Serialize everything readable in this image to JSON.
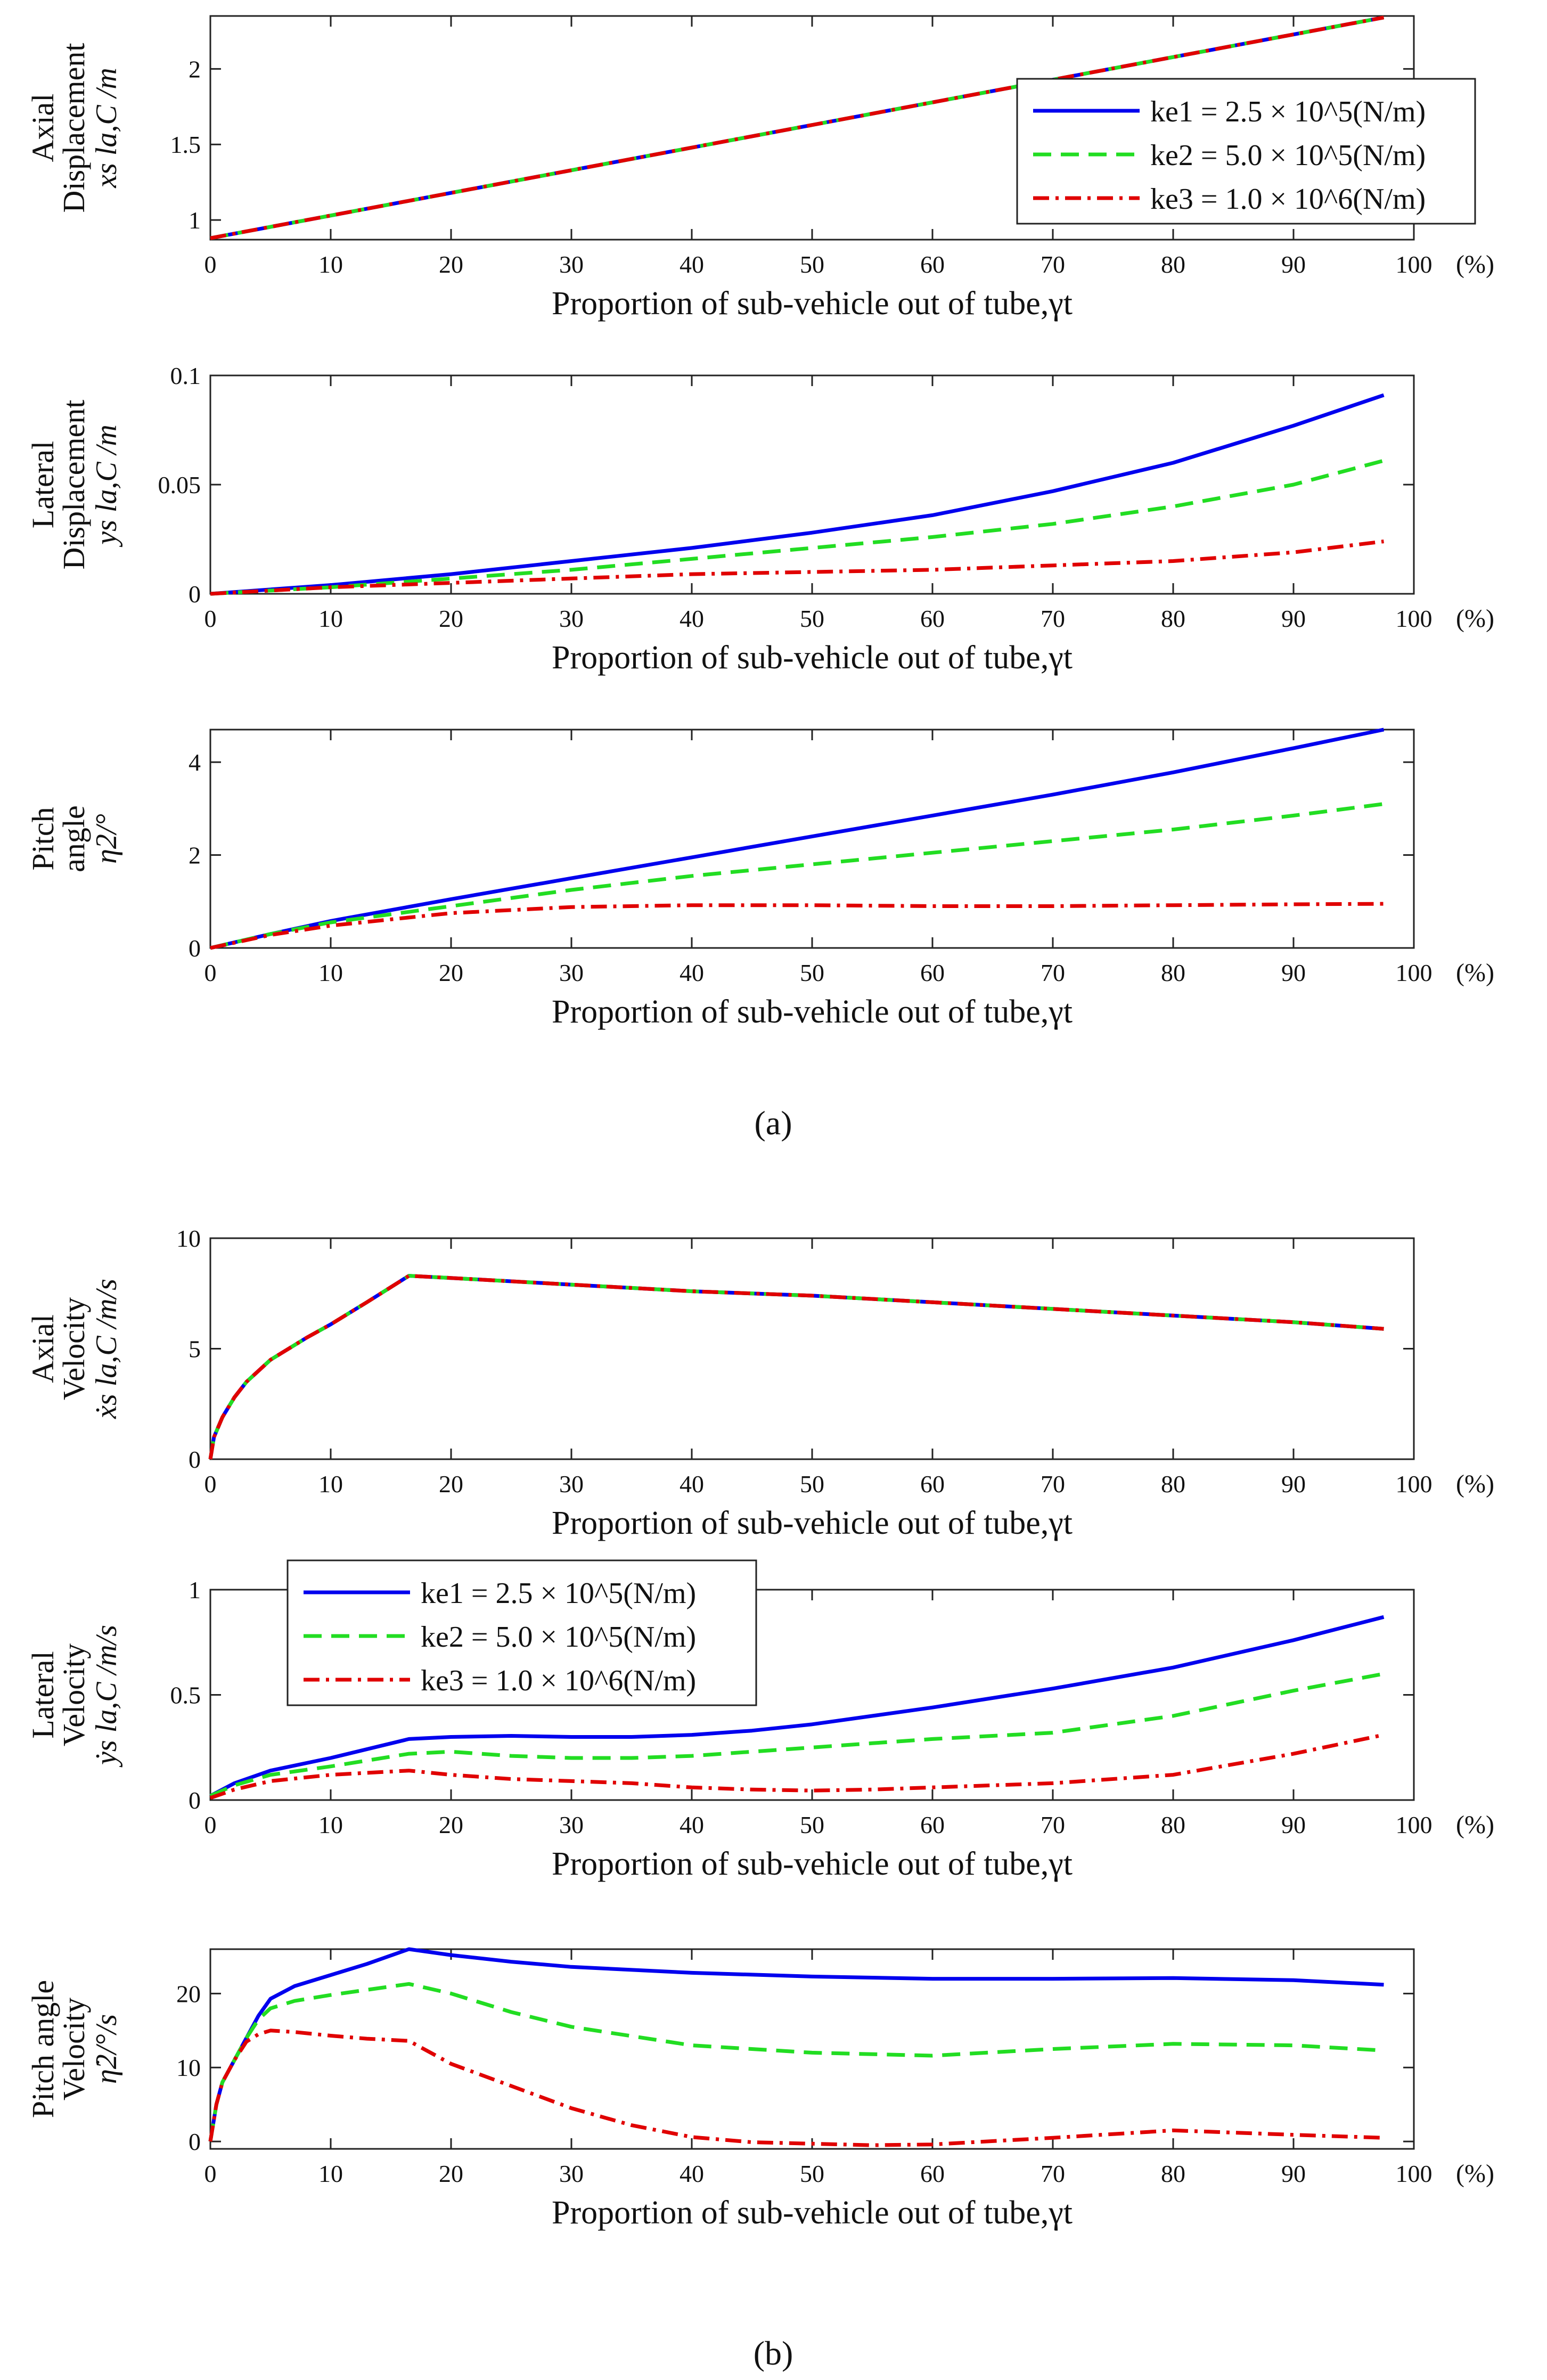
{
  "figure": {
    "label_a": "(a)",
    "label_b": "(b)",
    "colors": {
      "s1": "#0000ee",
      "s2": "#22dd22",
      "s3": "#e00000"
    }
  },
  "chart_data": [
    {
      "id": "axial-displacement",
      "type": "line",
      "title": "",
      "xlabel": "Proportion of sub-vehicle out of tube,γt",
      "x_unit": "(%)",
      "ylabel_lines": [
        "Axial",
        "Displacement",
        "xs la,C /m"
      ],
      "xlim": [
        0,
        100
      ],
      "ylim": [
        0.87,
        2.35
      ],
      "xticks": [
        "0",
        "10",
        "20",
        "30",
        "40",
        "50",
        "60",
        "70",
        "80",
        "90",
        "100"
      ],
      "yticks": [
        {
          "v": 1,
          "t": "1"
        },
        {
          "v": 1.5,
          "t": "1.5"
        },
        {
          "v": 2,
          "t": "2"
        }
      ],
      "legend": {
        "position": "upper-right",
        "entries": [
          "ke1 = 2.5 × 10^5(N/m)",
          "ke2 = 5.0 × 10^5(N/m)",
          "ke3 = 1.0 × 10^6(N/m)"
        ]
      },
      "series": [
        {
          "name": "ke1 = 2.5 × 10^5(N/m)",
          "x": [
            0,
            97.5
          ],
          "y": [
            0.88,
            2.34
          ]
        },
        {
          "name": "ke2 = 5.0 × 10^5(N/m)",
          "x": [
            0,
            97.5
          ],
          "y": [
            0.88,
            2.34
          ]
        },
        {
          "name": "ke3 = 1.0 × 10^6(N/m)",
          "x": [
            0,
            97.5
          ],
          "y": [
            0.88,
            2.34
          ]
        }
      ]
    },
    {
      "id": "lateral-displacement",
      "type": "line",
      "xlabel": "Proportion of sub-vehicle out of tube,γt",
      "x_unit": "(%)",
      "ylabel_lines": [
        "Lateral",
        "Displacement",
        "ys la,C /m"
      ],
      "xlim": [
        0,
        100
      ],
      "ylim": [
        0,
        0.1
      ],
      "xticks": [
        "0",
        "10",
        "20",
        "30",
        "40",
        "50",
        "60",
        "70",
        "80",
        "90",
        "100"
      ],
      "yticks": [
        {
          "v": 0,
          "t": "0"
        },
        {
          "v": 0.05,
          "t": "0.05"
        },
        {
          "v": 0.1,
          "t": "0.1"
        }
      ],
      "series": [
        {
          "name": "ke1 = 2.5 × 10^5(N/m)",
          "x": [
            0,
            10,
            20,
            30,
            40,
            50,
            60,
            70,
            80,
            90,
            97.5
          ],
          "y": [
            0,
            0.004,
            0.009,
            0.015,
            0.021,
            0.028,
            0.036,
            0.047,
            0.06,
            0.077,
            0.091
          ]
        },
        {
          "name": "ke2 = 5.0 × 10^5(N/m)",
          "x": [
            0,
            10,
            20,
            30,
            40,
            50,
            60,
            70,
            80,
            90,
            97.5
          ],
          "y": [
            0,
            0.003,
            0.007,
            0.011,
            0.016,
            0.021,
            0.026,
            0.032,
            0.04,
            0.05,
            0.061
          ]
        },
        {
          "name": "ke3 = 1.0 × 10^6(N/m)",
          "x": [
            0,
            10,
            20,
            30,
            40,
            50,
            60,
            70,
            80,
            90,
            97.5
          ],
          "y": [
            0,
            0.003,
            0.005,
            0.007,
            0.009,
            0.01,
            0.011,
            0.013,
            0.015,
            0.019,
            0.024
          ]
        }
      ]
    },
    {
      "id": "pitch-angle",
      "type": "line",
      "xlabel": "Proportion of sub-vehicle out of tube,γt",
      "x_unit": "(%)",
      "ylabel_lines": [
        "Pitch",
        "angle",
        "η2/°"
      ],
      "xlim": [
        0,
        100
      ],
      "ylim": [
        0,
        4.7
      ],
      "xticks": [
        "0",
        "10",
        "20",
        "30",
        "40",
        "50",
        "60",
        "70",
        "80",
        "90",
        "100"
      ],
      "yticks": [
        {
          "v": 0,
          "t": "0"
        },
        {
          "v": 2,
          "t": "2"
        },
        {
          "v": 4,
          "t": "4"
        }
      ],
      "series": [
        {
          "name": "ke1 = 2.5 × 10^5(N/m)",
          "x": [
            0,
            5,
            10,
            20,
            30,
            40,
            50,
            60,
            70,
            80,
            90,
            97.5
          ],
          "y": [
            0,
            0.3,
            0.58,
            1.05,
            1.5,
            1.95,
            2.4,
            2.85,
            3.3,
            3.78,
            4.3,
            4.7
          ]
        },
        {
          "name": "ke2 = 5.0 × 10^5(N/m)",
          "x": [
            0,
            5,
            10,
            20,
            30,
            40,
            50,
            60,
            70,
            80,
            90,
            97.5
          ],
          "y": [
            0,
            0.3,
            0.55,
            0.9,
            1.25,
            1.55,
            1.8,
            2.05,
            2.3,
            2.55,
            2.85,
            3.1
          ]
        },
        {
          "name": "ke3 = 1.0 × 10^6(N/m)",
          "x": [
            0,
            5,
            10,
            20,
            30,
            40,
            50,
            60,
            70,
            80,
            90,
            97.5
          ],
          "y": [
            0,
            0.28,
            0.48,
            0.75,
            0.88,
            0.92,
            0.92,
            0.9,
            0.9,
            0.92,
            0.94,
            0.95
          ]
        }
      ]
    },
    {
      "id": "axial-velocity",
      "type": "line",
      "xlabel": "Proportion of sub-vehicle out of tube,γt",
      "x_unit": "(%)",
      "ylabel_lines": [
        "Axial",
        "Velocity",
        "ẋs la,C /m/s"
      ],
      "xlim": [
        0,
        100
      ],
      "ylim": [
        0,
        10
      ],
      "xticks": [
        "0",
        "10",
        "20",
        "30",
        "40",
        "50",
        "60",
        "70",
        "80",
        "90",
        "100"
      ],
      "yticks": [
        {
          "v": 0,
          "t": "0"
        },
        {
          "v": 5,
          "t": "5"
        },
        {
          "v": 10,
          "t": "10"
        }
      ],
      "series": [
        {
          "name": "ke1 = 2.5 × 10^5(N/m)",
          "x": [
            0,
            0.3,
            1,
            2,
            3,
            5,
            8,
            10,
            13,
            16.5,
            20,
            30,
            40,
            50,
            60,
            70,
            80,
            90,
            97.5
          ],
          "y": [
            0,
            1.0,
            1.9,
            2.8,
            3.5,
            4.5,
            5.5,
            6.1,
            7.1,
            8.3,
            8.2,
            7.9,
            7.6,
            7.4,
            7.1,
            6.8,
            6.5,
            6.2,
            5.9
          ]
        },
        {
          "name": "ke2 = 5.0 × 10^5(N/m)",
          "x": [
            0,
            0.3,
            1,
            2,
            3,
            5,
            8,
            10,
            13,
            16.5,
            20,
            30,
            40,
            50,
            60,
            70,
            80,
            90,
            97.5
          ],
          "y": [
            0,
            1.0,
            1.9,
            2.8,
            3.5,
            4.5,
            5.5,
            6.1,
            7.1,
            8.3,
            8.2,
            7.9,
            7.6,
            7.4,
            7.1,
            6.8,
            6.5,
            6.2,
            5.9
          ]
        },
        {
          "name": "ke3 = 1.0 × 10^6(N/m)",
          "x": [
            0,
            0.3,
            1,
            2,
            3,
            5,
            8,
            10,
            13,
            16.5,
            20,
            30,
            40,
            50,
            60,
            70,
            80,
            90,
            97.5
          ],
          "y": [
            0,
            1.0,
            1.9,
            2.8,
            3.5,
            4.5,
            5.5,
            6.1,
            7.1,
            8.3,
            8.2,
            7.9,
            7.6,
            7.4,
            7.1,
            6.8,
            6.5,
            6.2,
            5.9
          ]
        }
      ]
    },
    {
      "id": "lateral-velocity",
      "type": "line",
      "xlabel": "Proportion of sub-vehicle out of tube,γt",
      "x_unit": "(%)",
      "ylabel_lines": [
        "Lateral",
        "Velocity",
        "ẏs la,C /m/s"
      ],
      "xlim": [
        0,
        100
      ],
      "ylim": [
        0,
        1
      ],
      "xticks": [
        "0",
        "10",
        "20",
        "30",
        "40",
        "50",
        "60",
        "70",
        "80",
        "90",
        "100"
      ],
      "yticks": [
        {
          "v": 0,
          "t": "0"
        },
        {
          "v": 0.5,
          "t": "0.5"
        },
        {
          "v": 1,
          "t": "1"
        }
      ],
      "legend": {
        "position": "upper-left",
        "entries": [
          "ke1 = 2.5 × 10^5(N/m)",
          "ke2 = 5.0 × 10^5(N/m)",
          "ke3 = 1.0 × 10^6(N/m)"
        ]
      },
      "series": [
        {
          "name": "ke1 = 2.5 × 10^5(N/m)",
          "x": [
            0,
            2,
            5,
            10,
            16.5,
            20,
            25,
            30,
            35,
            40,
            45,
            50,
            55,
            60,
            70,
            80,
            90,
            97.5
          ],
          "y": [
            0.02,
            0.08,
            0.14,
            0.2,
            0.29,
            0.3,
            0.305,
            0.3,
            0.3,
            0.31,
            0.33,
            0.36,
            0.4,
            0.44,
            0.53,
            0.63,
            0.76,
            0.87
          ]
        },
        {
          "name": "ke2 = 5.0 × 10^5(N/m)",
          "x": [
            0,
            2,
            5,
            10,
            16.5,
            20,
            25,
            30,
            35,
            40,
            45,
            50,
            55,
            60,
            70,
            80,
            90,
            97.5
          ],
          "y": [
            0.02,
            0.07,
            0.12,
            0.16,
            0.22,
            0.23,
            0.21,
            0.2,
            0.2,
            0.21,
            0.23,
            0.25,
            0.27,
            0.29,
            0.32,
            0.4,
            0.52,
            0.6
          ]
        },
        {
          "name": "ke3 = 1.0 × 10^6(N/m)",
          "x": [
            0,
            2,
            5,
            10,
            16.5,
            20,
            25,
            30,
            35,
            40,
            45,
            50,
            55,
            60,
            70,
            80,
            90,
            97.5
          ],
          "y": [
            0.01,
            0.05,
            0.09,
            0.12,
            0.14,
            0.12,
            0.1,
            0.09,
            0.08,
            0.06,
            0.05,
            0.045,
            0.05,
            0.06,
            0.08,
            0.12,
            0.22,
            0.31
          ]
        }
      ]
    },
    {
      "id": "pitch-angle-velocity",
      "type": "line",
      "xlabel": "Proportion of sub-vehicle out of tube,γt",
      "x_unit": "(%)",
      "ylabel_lines": [
        "Pitch angle",
        "Velocity",
        "η̇2/°/s"
      ],
      "xlim": [
        0,
        100
      ],
      "ylim": [
        -1,
        26
      ],
      "xticks": [
        "0",
        "10",
        "20",
        "30",
        "40",
        "50",
        "60",
        "70",
        "80",
        "90",
        "100"
      ],
      "yticks": [
        {
          "v": 0,
          "t": "0"
        },
        {
          "v": 10,
          "t": "10"
        },
        {
          "v": 20,
          "t": "20"
        }
      ],
      "series": [
        {
          "name": "ke1 = 2.5 × 10^5(N/m)",
          "x": [
            0,
            0.5,
            1,
            2,
            3,
            4,
            5,
            7,
            10,
            13,
            16.5,
            20,
            25,
            30,
            40,
            50,
            60,
            70,
            80,
            90,
            97.5
          ],
          "y": [
            0,
            5,
            8,
            11,
            14,
            17,
            19.3,
            21,
            22.5,
            24,
            26,
            25.2,
            24.3,
            23.6,
            22.8,
            22.3,
            22,
            22,
            22.1,
            21.8,
            21.2
          ]
        },
        {
          "name": "ke2 = 5.0 × 10^5(N/m)",
          "x": [
            0,
            0.5,
            1,
            2,
            3,
            4,
            5,
            7,
            10,
            13,
            16.5,
            20,
            25,
            30,
            40,
            50,
            60,
            70,
            80,
            90,
            97.5
          ],
          "y": [
            0,
            5,
            8,
            11,
            14,
            16.5,
            18,
            19,
            19.8,
            20.5,
            21.3,
            20,
            17.5,
            15.5,
            13,
            12,
            11.6,
            12.5,
            13.2,
            13,
            12.3
          ]
        },
        {
          "name": "ke3 = 1.0 × 10^6(N/m)",
          "x": [
            0,
            0.5,
            1,
            2,
            3,
            4,
            5,
            7,
            10,
            13,
            16.5,
            20,
            25,
            30,
            35,
            40,
            45,
            50,
            55,
            60,
            70,
            80,
            90,
            97.5
          ],
          "y": [
            0,
            5,
            8,
            11,
            13.5,
            14.5,
            15,
            14.8,
            14.3,
            13.9,
            13.6,
            10.5,
            7.5,
            4.5,
            2.2,
            0.6,
            -0.1,
            -0.3,
            -0.5,
            -0.4,
            0.5,
            1.5,
            0.9,
            0.5
          ]
        }
      ]
    }
  ]
}
